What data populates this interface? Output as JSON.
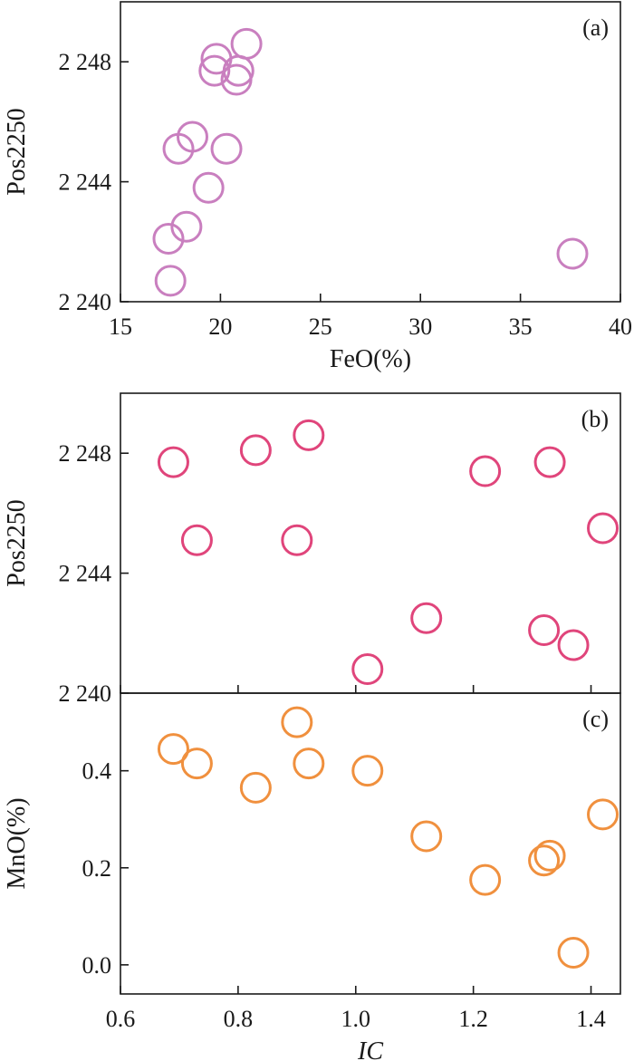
{
  "chart_data": [
    {
      "panel_label": "(a)",
      "type": "scatter",
      "xlabel": "FeO(%)",
      "ylabel": "Pos2250",
      "xlim": [
        15,
        40
      ],
      "ylim": [
        2240,
        2250
      ],
      "xticks": [
        15,
        20,
        25,
        30,
        35,
        40
      ],
      "xtick_labels": [
        "15",
        "20",
        "25",
        "30",
        "35",
        "40"
      ],
      "yticks": [
        2240,
        2244,
        2248
      ],
      "ytick_labels": [
        "2 240",
        "2 244",
        "2 248"
      ],
      "marker_color": "#c97fbf",
      "points": [
        {
          "x": 17.5,
          "y": 2240.7
        },
        {
          "x": 17.4,
          "y": 2242.1
        },
        {
          "x": 18.3,
          "y": 2242.5
        },
        {
          "x": 19.4,
          "y": 2243.8
        },
        {
          "x": 17.9,
          "y": 2245.1
        },
        {
          "x": 18.6,
          "y": 2245.5
        },
        {
          "x": 20.3,
          "y": 2245.1
        },
        {
          "x": 19.8,
          "y": 2248.1
        },
        {
          "x": 19.7,
          "y": 2247.7
        },
        {
          "x": 20.8,
          "y": 2247.4
        },
        {
          "x": 20.9,
          "y": 2247.7
        },
        {
          "x": 21.3,
          "y": 2248.6
        },
        {
          "x": 37.6,
          "y": 2241.6
        }
      ]
    },
    {
      "panel_label": "(b)",
      "type": "scatter",
      "xlabel": "",
      "ylabel": "Pos2250",
      "xlim": [
        0.6,
        1.45
      ],
      "ylim": [
        2240,
        2250
      ],
      "yticks": [
        2240,
        2244,
        2248
      ],
      "ytick_labels": [
        "2 240",
        "2 244",
        "2 248"
      ],
      "marker_color": "#e0457b",
      "points": [
        {
          "x": 0.69,
          "y": 2247.7
        },
        {
          "x": 0.73,
          "y": 2245.1
        },
        {
          "x": 0.83,
          "y": 2248.1
        },
        {
          "x": 0.9,
          "y": 2245.1
        },
        {
          "x": 0.92,
          "y": 2248.6
        },
        {
          "x": 1.02,
          "y": 2240.8
        },
        {
          "x": 1.12,
          "y": 2242.5
        },
        {
          "x": 1.22,
          "y": 2247.4
        },
        {
          "x": 1.32,
          "y": 2242.1
        },
        {
          "x": 1.33,
          "y": 2247.7
        },
        {
          "x": 1.37,
          "y": 2241.6
        },
        {
          "x": 1.42,
          "y": 2245.5
        }
      ]
    },
    {
      "panel_label": "(c)",
      "type": "scatter",
      "xlabel": "IC",
      "ylabel": "MnO(%)",
      "xlim": [
        0.6,
        1.45
      ],
      "ylim": [
        -0.06,
        0.56
      ],
      "xticks": [
        0.6,
        0.8,
        1.0,
        1.2,
        1.4
      ],
      "xtick_labels": [
        "0.6",
        "0.8",
        "1.0",
        "1.2",
        "1.4"
      ],
      "yticks": [
        0.0,
        0.2,
        0.4
      ],
      "ytick_labels": [
        "0.0",
        "0.2",
        "0.4"
      ],
      "marker_color": "#f0903e",
      "points": [
        {
          "x": 0.69,
          "y": 0.445
        },
        {
          "x": 0.73,
          "y": 0.415
        },
        {
          "x": 0.83,
          "y": 0.365
        },
        {
          "x": 0.9,
          "y": 0.5
        },
        {
          "x": 0.92,
          "y": 0.415
        },
        {
          "x": 1.02,
          "y": 0.4
        },
        {
          "x": 1.12,
          "y": 0.265
        },
        {
          "x": 1.22,
          "y": 0.175
        },
        {
          "x": 1.32,
          "y": 0.215
        },
        {
          "x": 1.33,
          "y": 0.225
        },
        {
          "x": 1.37,
          "y": 0.025
        },
        {
          "x": 1.42,
          "y": 0.31
        }
      ]
    }
  ]
}
